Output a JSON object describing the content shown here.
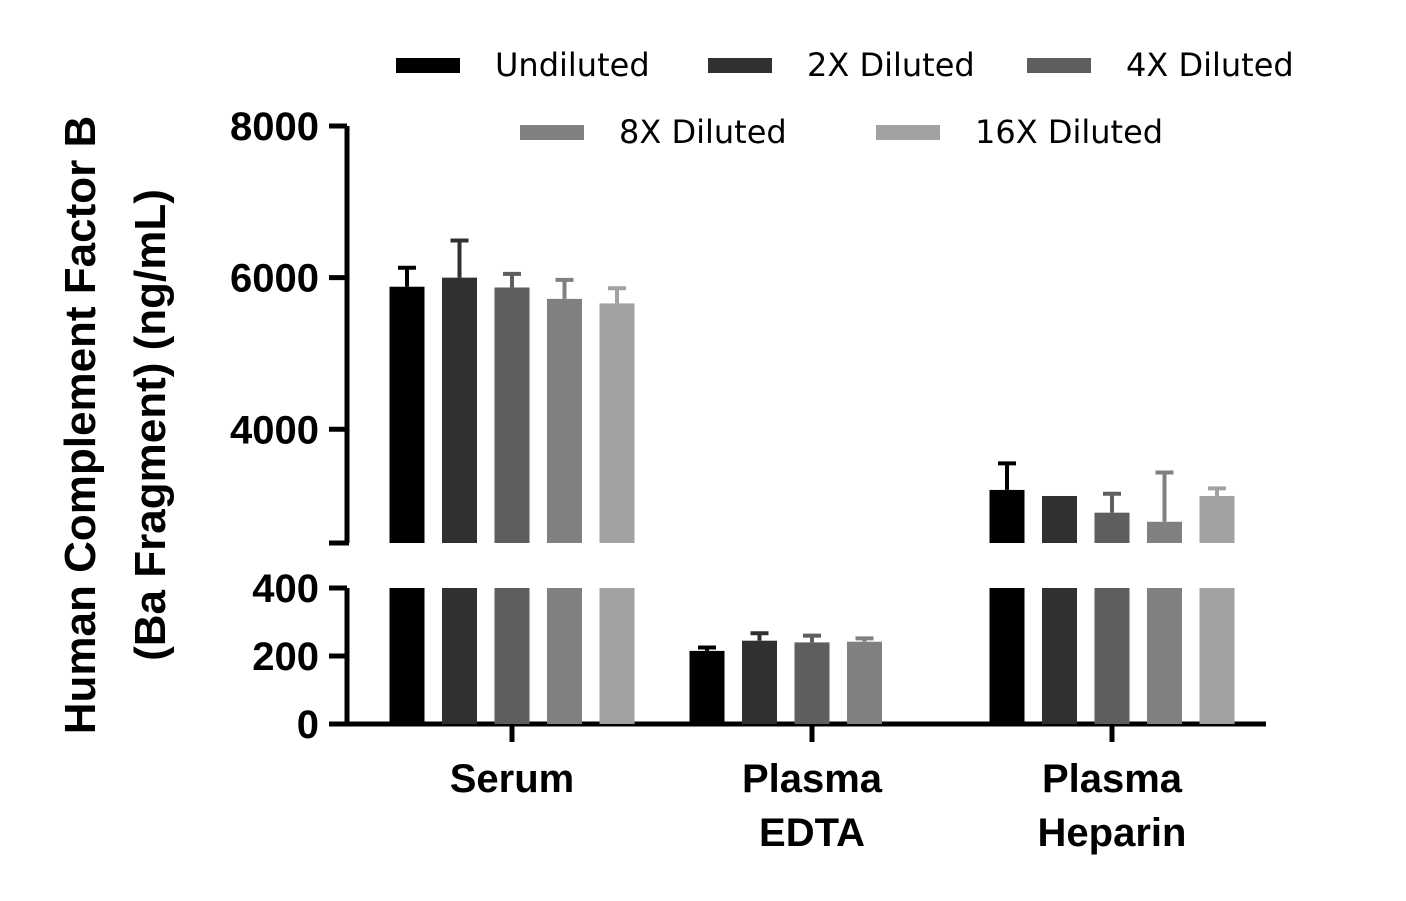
{
  "chart_data": {
    "type": "bar",
    "ylabel_line1": "Human Complement Factor B",
    "ylabel_line2": "(Ba Fragment) (ng/mL)",
    "categories": [
      {
        "line1": "Serum",
        "line2": ""
      },
      {
        "line1": "Plasma",
        "line2": "EDTA"
      },
      {
        "line1": "Plasma",
        "line2": "Heparin"
      }
    ],
    "series": [
      {
        "name": "Undiluted",
        "color": "#000000",
        "values": [
          5880,
          215,
          3200
        ],
        "errors": [
          250,
          10,
          350
        ]
      },
      {
        "name": "2X Diluted",
        "color": "#303030",
        "values": [
          6000,
          245,
          3120
        ],
        "errors": [
          490,
          22,
          0
        ]
      },
      {
        "name": "4X Diluted",
        "color": "#5e5e5e",
        "values": [
          5870,
          240,
          2900
        ],
        "errors": [
          180,
          20,
          250
        ]
      },
      {
        "name": "8X Diluted",
        "color": "#808080",
        "values": [
          5720,
          242,
          2780
        ],
        "errors": [
          250,
          10,
          650
        ]
      },
      {
        "name": "16X Diluted",
        "color": "#a2a2a4",
        "values": [
          5660,
          null,
          3120
        ],
        "errors": [
          200,
          null,
          100
        ]
      }
    ],
    "y_axis_segments": [
      {
        "range": [
          0,
          400
        ],
        "ticks": [
          "0",
          "200",
          "400"
        ]
      },
      {
        "range": [
          2500,
          8000
        ],
        "ticks": [
          "4000",
          "6000",
          "8000"
        ]
      }
    ],
    "legend_position": "top",
    "grid": false
  }
}
